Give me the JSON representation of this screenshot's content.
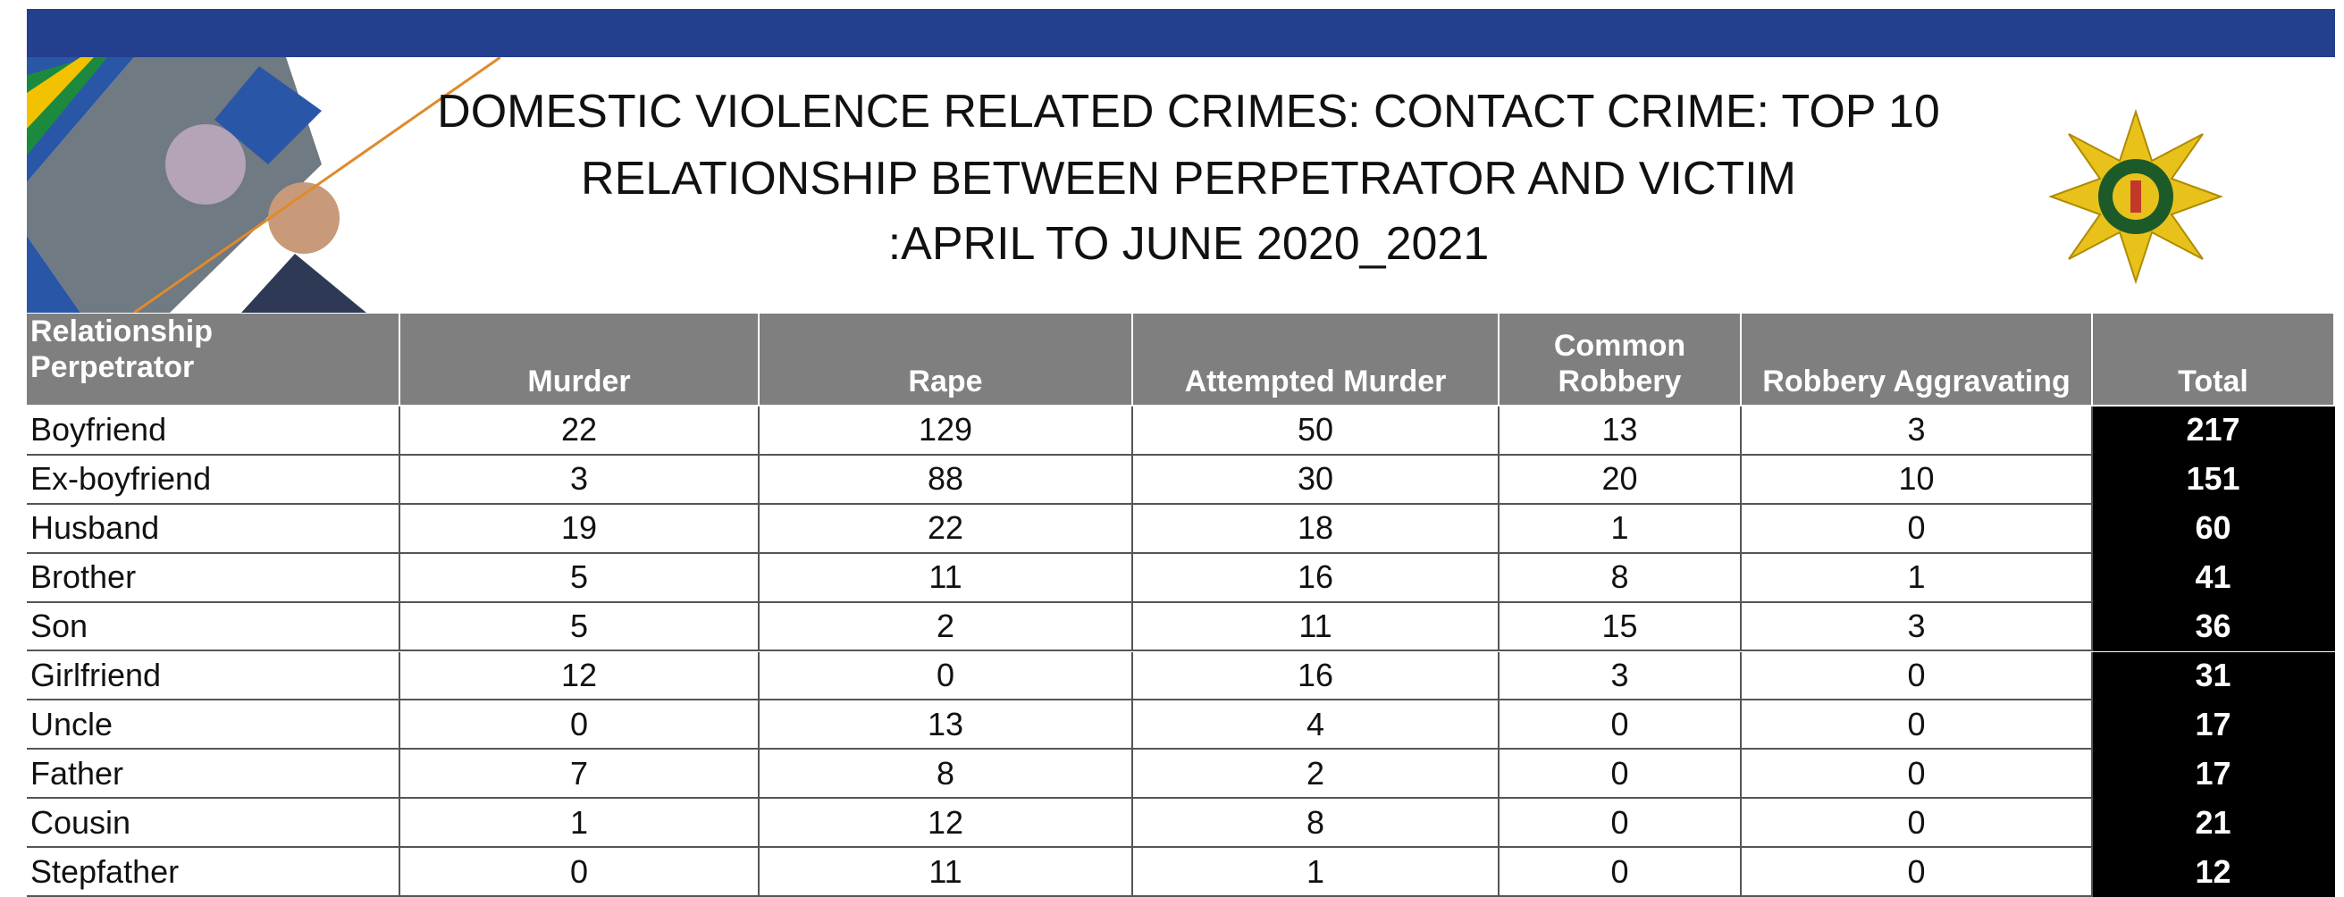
{
  "header": {
    "title_lines": [
      "DOMESTIC VIOLENCE RELATED CRIMES: CONTACT CRIME: TOP 10",
      "RELATIONSHIP BETWEEN PERPETRATOR AND VICTIM",
      ":APRIL TO JUNE 2020_2021"
    ]
  },
  "table": {
    "columns": [
      [
        "Relationship",
        "Perpetrator"
      ],
      [
        "Murder"
      ],
      [
        "Rape"
      ],
      [
        "Attempted Murder"
      ],
      [
        "Common",
        "Robbery"
      ],
      [
        "Robbery Aggravating"
      ],
      [
        "Total"
      ]
    ],
    "rows": [
      [
        "Boyfriend",
        "22",
        "129",
        "50",
        "13",
        "3",
        "217"
      ],
      [
        "Ex-boyfriend",
        "3",
        "88",
        "30",
        "20",
        "10",
        "151"
      ],
      [
        "Husband",
        "19",
        "22",
        "18",
        "1",
        "0",
        "60"
      ],
      [
        "Brother",
        "5",
        "11",
        "16",
        "8",
        "1",
        "41"
      ],
      [
        "Son",
        "5",
        "2",
        "11",
        "15",
        "3",
        "36"
      ],
      [
        "Girlfriend",
        "12",
        "0",
        "16",
        "3",
        "0",
        "31"
      ],
      [
        "Uncle",
        "0",
        "13",
        "4",
        "0",
        "0",
        "17"
      ],
      [
        "Father",
        "7",
        "8",
        "2",
        "0",
        "0",
        "17"
      ],
      [
        "Cousin",
        "1",
        "12",
        "8",
        "0",
        "0",
        "21"
      ],
      [
        "Stepfather",
        "0",
        "11",
        "1",
        "0",
        "0",
        "12"
      ]
    ]
  }
}
